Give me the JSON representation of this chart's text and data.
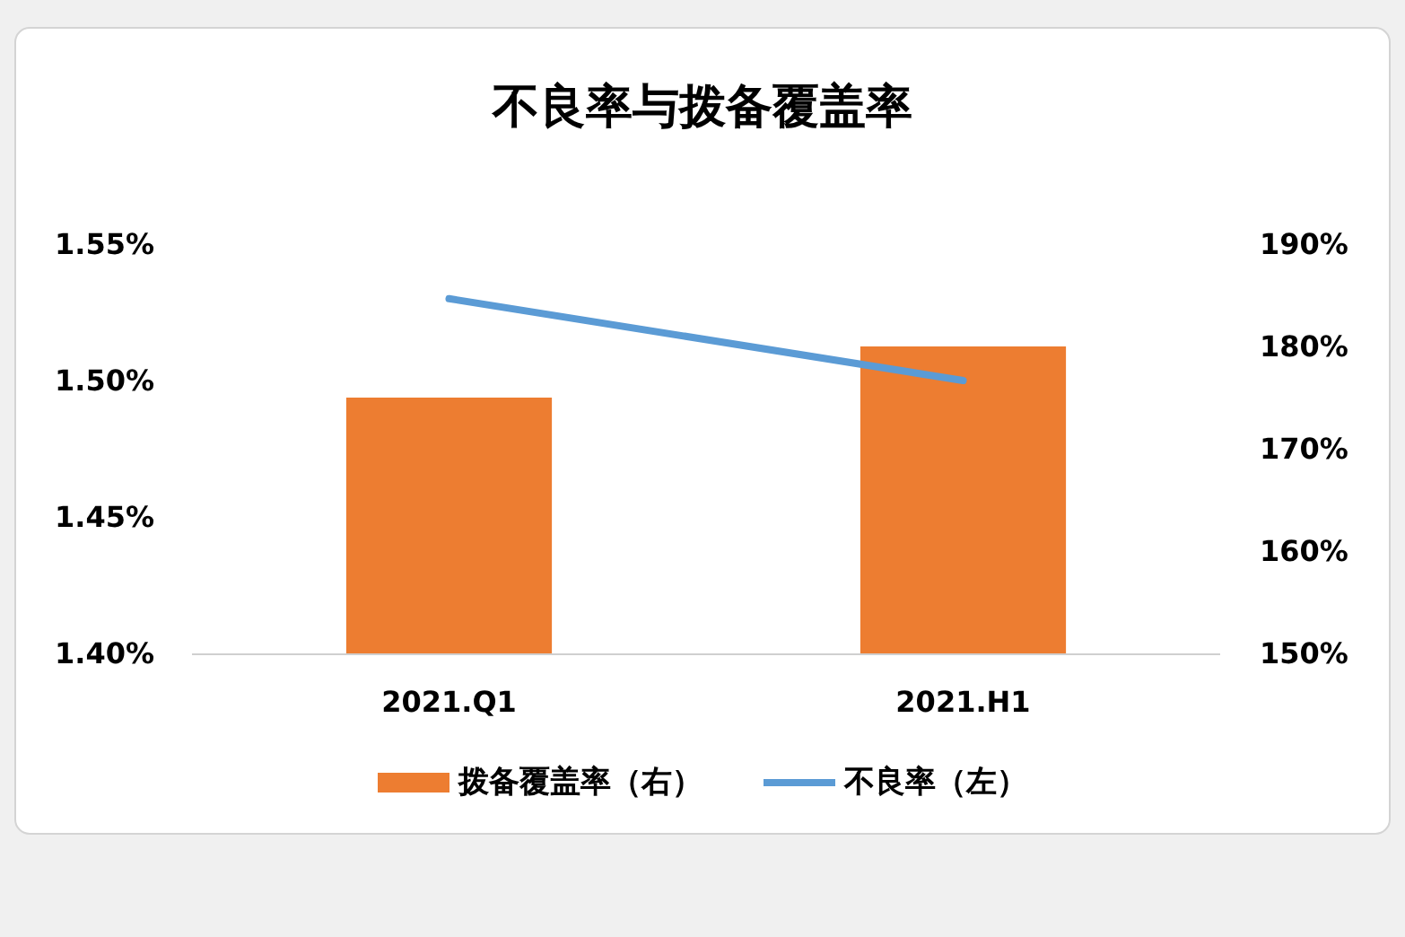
{
  "chart_data": {
    "type": "bar",
    "title": "不良率与拨备覆盖率",
    "categories": [
      "2021.Q1",
      "2021.H1"
    ],
    "series": [
      {
        "name": "拨备覆盖率（右）",
        "axis": "y2",
        "color": "#ed7d31",
        "values": [
          175,
          180
        ]
      },
      {
        "name": "不良率（左）",
        "type": "line",
        "color": "#5b9bd5",
        "values": [
          1.53,
          1.5
        ]
      }
    ],
    "ylim": [
      1.4,
      1.55
    ],
    "yticks": [
      {
        "value": 1.4,
        "label": "1.40%"
      },
      {
        "value": 1.45,
        "label": "1.45%"
      },
      {
        "value": 1.5,
        "label": "1.50%"
      },
      {
        "value": 1.55,
        "label": "1.55%"
      }
    ],
    "y2lim": [
      150,
      190
    ],
    "y2ticks": [
      {
        "value": 150,
        "label": "150%"
      },
      {
        "value": 160,
        "label": "160%"
      },
      {
        "value": 170,
        "label": "170%"
      },
      {
        "value": 180,
        "label": "180%"
      },
      {
        "value": 190,
        "label": "190%"
      }
    ],
    "legend": "bottom"
  }
}
